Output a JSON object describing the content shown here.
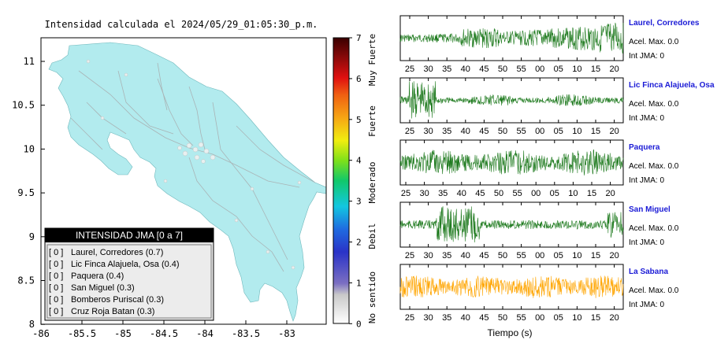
{
  "map": {
    "title": "Intensidad calculada el 2024/05/29_01:05:30_p.m.",
    "x_ticks": [
      "-86",
      "-85.5",
      "-85",
      "-84.5",
      "-84",
      "-83.5",
      "-83"
    ],
    "y_ticks": [
      "11",
      "10.5",
      "10",
      "9.5",
      "9",
      "8.5",
      "8"
    ],
    "land_color": "#b2ebee",
    "legend": {
      "title": "INTENSIDAD JMA [0 a 7]",
      "items": [
        {
          "value": "[ 0 ]",
          "label": "Laurel, Corredores (0.7)"
        },
        {
          "value": "[ 0 ]",
          "label": "Lic Finca Alajuela, Osa (0.4)"
        },
        {
          "value": "[ 0 ]",
          "label": "Paquera (0.4)"
        },
        {
          "value": "[ 0 ]",
          "label": "San Miguel (0.3)"
        },
        {
          "value": "[ 0 ]",
          "label": "Bomberos Puriscal (0.3)"
        },
        {
          "value": "[ 0 ]",
          "label": "Cruz Roja Batan (0.3)"
        }
      ]
    }
  },
  "colorbar": {
    "ticks": [
      "7",
      "6",
      "5",
      "4",
      "3",
      "2",
      "1",
      "0"
    ],
    "labels": [
      "Muy Fuerte",
      "Fuerte",
      "Moderado",
      "Debil",
      "No sentido"
    ]
  },
  "waveforms": {
    "x_ticks": [
      "25",
      "30",
      "35",
      "40",
      "45",
      "50",
      "55",
      "00",
      "05",
      "10",
      "15",
      "20"
    ],
    "xlabel": "Tiempo (s)",
    "stations": [
      {
        "name": "Laurel, Corredores",
        "accel": "Acel. Max. 0.0",
        "int": "Int JMA: 0",
        "color": "#1e7a1e"
      },
      {
        "name": "Lic Finca Alajuela, Osa",
        "accel": "Acel. Max. 0.0",
        "int": "Int JMA: 0",
        "color": "#1e7a1e"
      },
      {
        "name": "Paquera",
        "accel": "Acel. Max. 0.0",
        "int": "Int JMA: 0",
        "color": "#1e7a1e"
      },
      {
        "name": "San Miguel",
        "accel": "Acel. Max. 0.0",
        "int": "Int JMA: 0",
        "color": "#1e7a1e"
      },
      {
        "name": "La Sabana",
        "accel": "Acel. Max. 0.0",
        "int": "Int JMA: 0",
        "color": "#ffa500"
      }
    ]
  }
}
